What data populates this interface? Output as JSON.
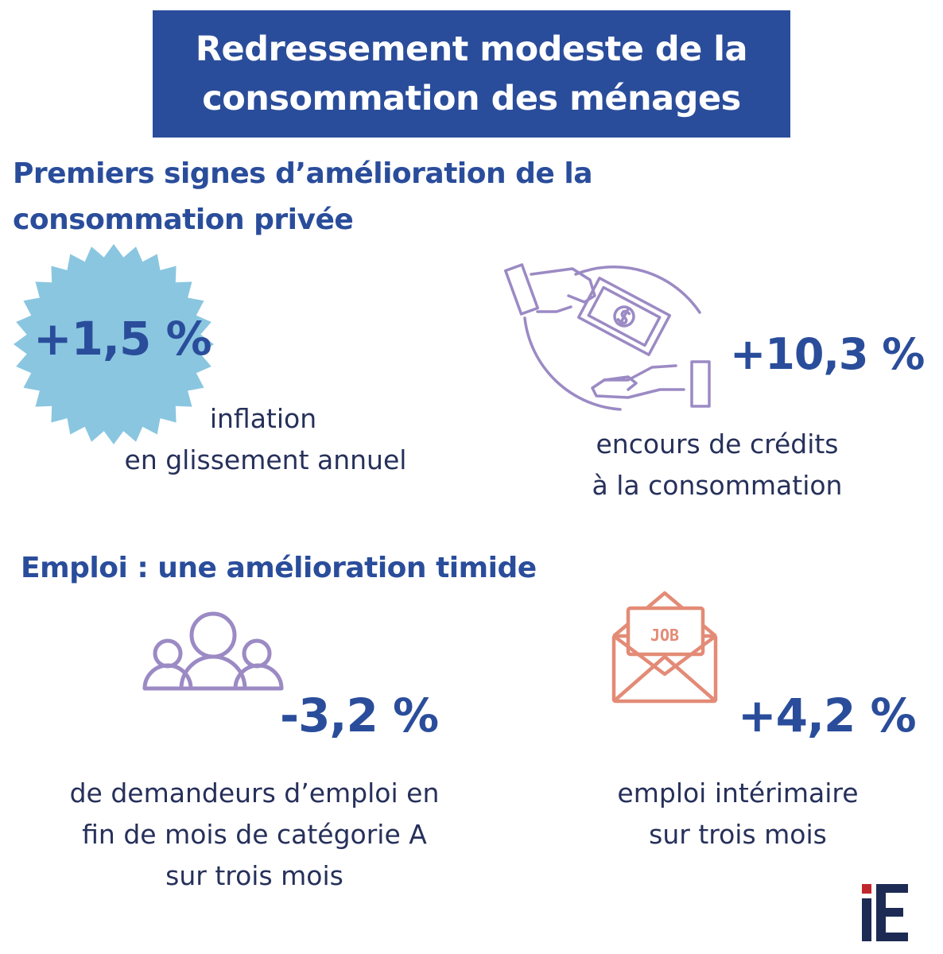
{
  "header": {
    "title_line1": "Redressement modeste de la",
    "title_line2": "consommation des ménages"
  },
  "section1": {
    "title_line1": "Premiers signes d’amélioration de la",
    "title_line2": "consommation privée",
    "inflation": {
      "value": "+1,5 %",
      "caption_line1": "inflation",
      "caption_line2": "en glissement annuel",
      "icon": "starburst-badge-icon"
    },
    "credit": {
      "value": "+10,3 %",
      "caption_line1": "encours de crédits",
      "caption_line2": "à la consommation",
      "icon": "money-exchange-hands-icon"
    }
  },
  "section2": {
    "title": "Emploi : une amélioration timide",
    "jobseekers": {
      "value": "-3,2 %",
      "caption_line1": "de demandeurs d’emploi en",
      "caption_line2": "fin de mois de catégorie A",
      "caption_line3": "sur trois mois",
      "icon": "people-group-icon"
    },
    "temp_work": {
      "value": "+4,2 %",
      "caption_line1": "emploi intérimaire",
      "caption_line2": "sur trois mois",
      "icon": "job-envelope-icon",
      "icon_text": "JOB"
    }
  },
  "footer": {
    "logo_text": "iE"
  },
  "colors": {
    "primary_blue": "#2a4d9b",
    "light_blue_badge": "#8ac6e0",
    "lavender_icon": "#9b8ac4",
    "salmon_icon": "#e38b76",
    "logo_red": "#c0272d",
    "logo_navy": "#1d2b54"
  }
}
